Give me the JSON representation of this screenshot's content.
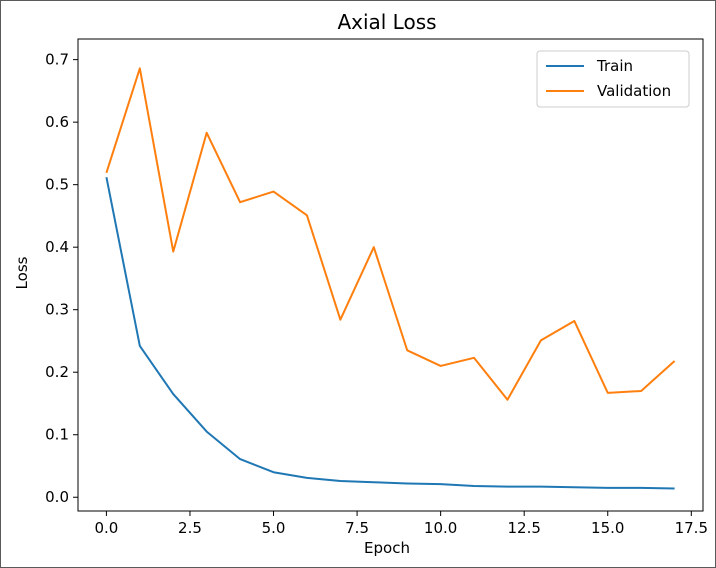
{
  "chart_data": {
    "type": "line",
    "title": "Axial Loss",
    "xlabel": "Epoch",
    "ylabel": "Loss",
    "x": [
      0,
      1,
      2,
      3,
      4,
      5,
      6,
      7,
      8,
      9,
      10,
      11,
      12,
      13,
      14,
      15,
      16,
      17
    ],
    "xlim": [
      -0.85,
      17.85
    ],
    "ylim": [
      -0.022,
      0.733
    ],
    "xticks": [
      0.0,
      2.5,
      5.0,
      7.5,
      10.0,
      12.5,
      15.0,
      17.5
    ],
    "xtick_labels": [
      "0.0",
      "2.5",
      "5.0",
      "7.5",
      "10.0",
      "12.5",
      "15.0",
      "17.5"
    ],
    "yticks": [
      0.0,
      0.1,
      0.2,
      0.3,
      0.4,
      0.5,
      0.6,
      0.7
    ],
    "ytick_labels": [
      "0.0",
      "0.1",
      "0.2",
      "0.3",
      "0.4",
      "0.5",
      "0.6",
      "0.7"
    ],
    "grid": false,
    "legend_position": "top-right",
    "series": [
      {
        "name": "Train",
        "color": "#1f77b4",
        "values": [
          0.512,
          0.242,
          0.165,
          0.105,
          0.061,
          0.04,
          0.031,
          0.026,
          0.024,
          0.022,
          0.021,
          0.018,
          0.017,
          0.017,
          0.016,
          0.015,
          0.015,
          0.014
        ]
      },
      {
        "name": "Validation",
        "color": "#ff7f0e",
        "values": [
          0.519,
          0.686,
          0.393,
          0.583,
          0.472,
          0.489,
          0.451,
          0.284,
          0.4,
          0.235,
          0.21,
          0.223,
          0.156,
          0.251,
          0.282,
          0.167,
          0.17,
          0.218
        ]
      }
    ]
  }
}
